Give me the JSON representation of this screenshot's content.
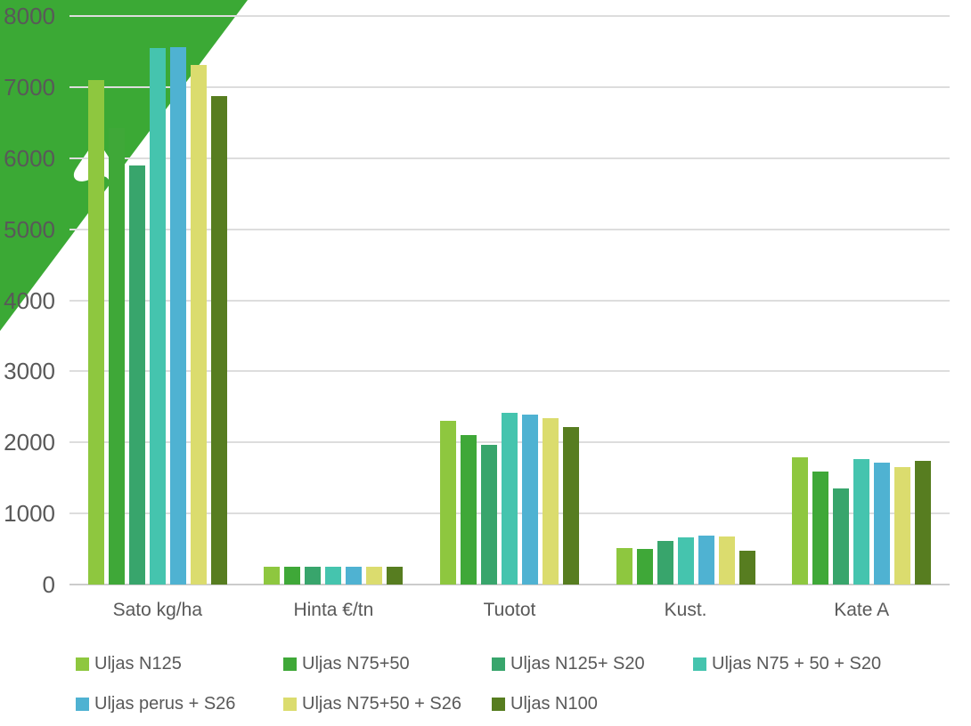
{
  "decor": {
    "corner_color": "#3BA935",
    "swoosh_color": "#FFFFFF"
  },
  "chart_data": {
    "type": "bar",
    "title": "",
    "xlabel": "",
    "ylabel": "",
    "categories": [
      "Sato kg/ha",
      "Hinta €/tn",
      "Tuotot",
      "Kust.",
      "Kate A"
    ],
    "series": [
      {
        "name": "Uljas N125",
        "color": "#8EC73F",
        "values": [
          7100,
          250,
          2300,
          510,
          1790
        ]
      },
      {
        "name": "Uljas N75+50",
        "color": "#3FA838",
        "values": [
          6420,
          250,
          2100,
          500,
          1590
        ]
      },
      {
        "name": "Uljas N125+ S20",
        "color": "#38A56C",
        "values": [
          5900,
          250,
          1970,
          610,
          1350
        ]
      },
      {
        "name": "Uljas N75 + 50 + S20",
        "color": "#45C4AE",
        "values": [
          7550,
          250,
          2420,
          660,
          1770
        ]
      },
      {
        "name": "Uljas perus + S26",
        "color": "#4FB2D2",
        "values": [
          7560,
          250,
          2390,
          690,
          1720
        ]
      },
      {
        "name": "Uljas N75+50 + S26",
        "color": "#DBDC6E",
        "values": [
          7310,
          250,
          2340,
          680,
          1650
        ]
      },
      {
        "name": "Uljas N100",
        "color": "#577D20",
        "values": [
          6870,
          250,
          2220,
          470,
          1740
        ]
      }
    ],
    "ylim": [
      0,
      8000
    ],
    "ytick_interval": 1000,
    "yticks": [
      8000,
      7000,
      6000,
      5000,
      4000,
      3000,
      2000,
      1000,
      0
    ],
    "grid": "horizontal",
    "legend_position": "bottom",
    "legend_rows": [
      4,
      3
    ]
  }
}
